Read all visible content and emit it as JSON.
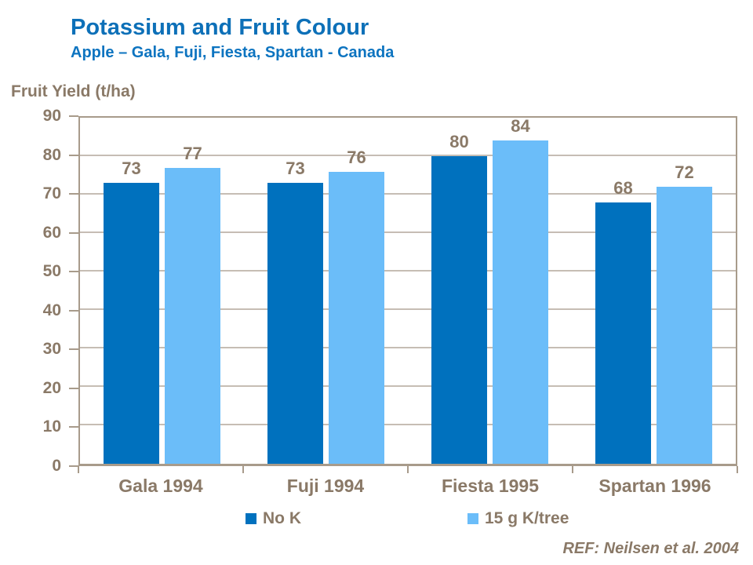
{
  "header": {
    "title": "Potassium and Fruit Colour",
    "subtitle": "Apple – Gala, Fuji, Fiesta, Spartan - Canada"
  },
  "chart_data": {
    "type": "bar",
    "categories": [
      "Gala 1994",
      "Fuji 1994",
      "Fiesta 1995",
      "Spartan 1996"
    ],
    "series": [
      {
        "name": "No K",
        "color": "#0071be",
        "values": [
          73,
          73,
          80,
          68
        ]
      },
      {
        "name": "15 g K/tree",
        "color": "#6bbdf9",
        "values": [
          77,
          76,
          84,
          72
        ]
      }
    ],
    "title": "Potassium and Fruit Colour",
    "xlabel": "",
    "ylabel": "Fruit Yield (t/ha)",
    "y_axis_title": "Fruit Yield (t/ha)",
    "ylim": [
      0,
      90
    ],
    "ytick_step": 10,
    "grid": true,
    "legend_position": "bottom"
  },
  "reference": "REF: Neilsen et al. 2004",
  "colors": {
    "title_blue": "#0d70b8",
    "axis_text_brown": "#8a7967",
    "gridline": "#c6bdb4",
    "plot_frame": "#a89b8b",
    "background": "#ffffff"
  }
}
